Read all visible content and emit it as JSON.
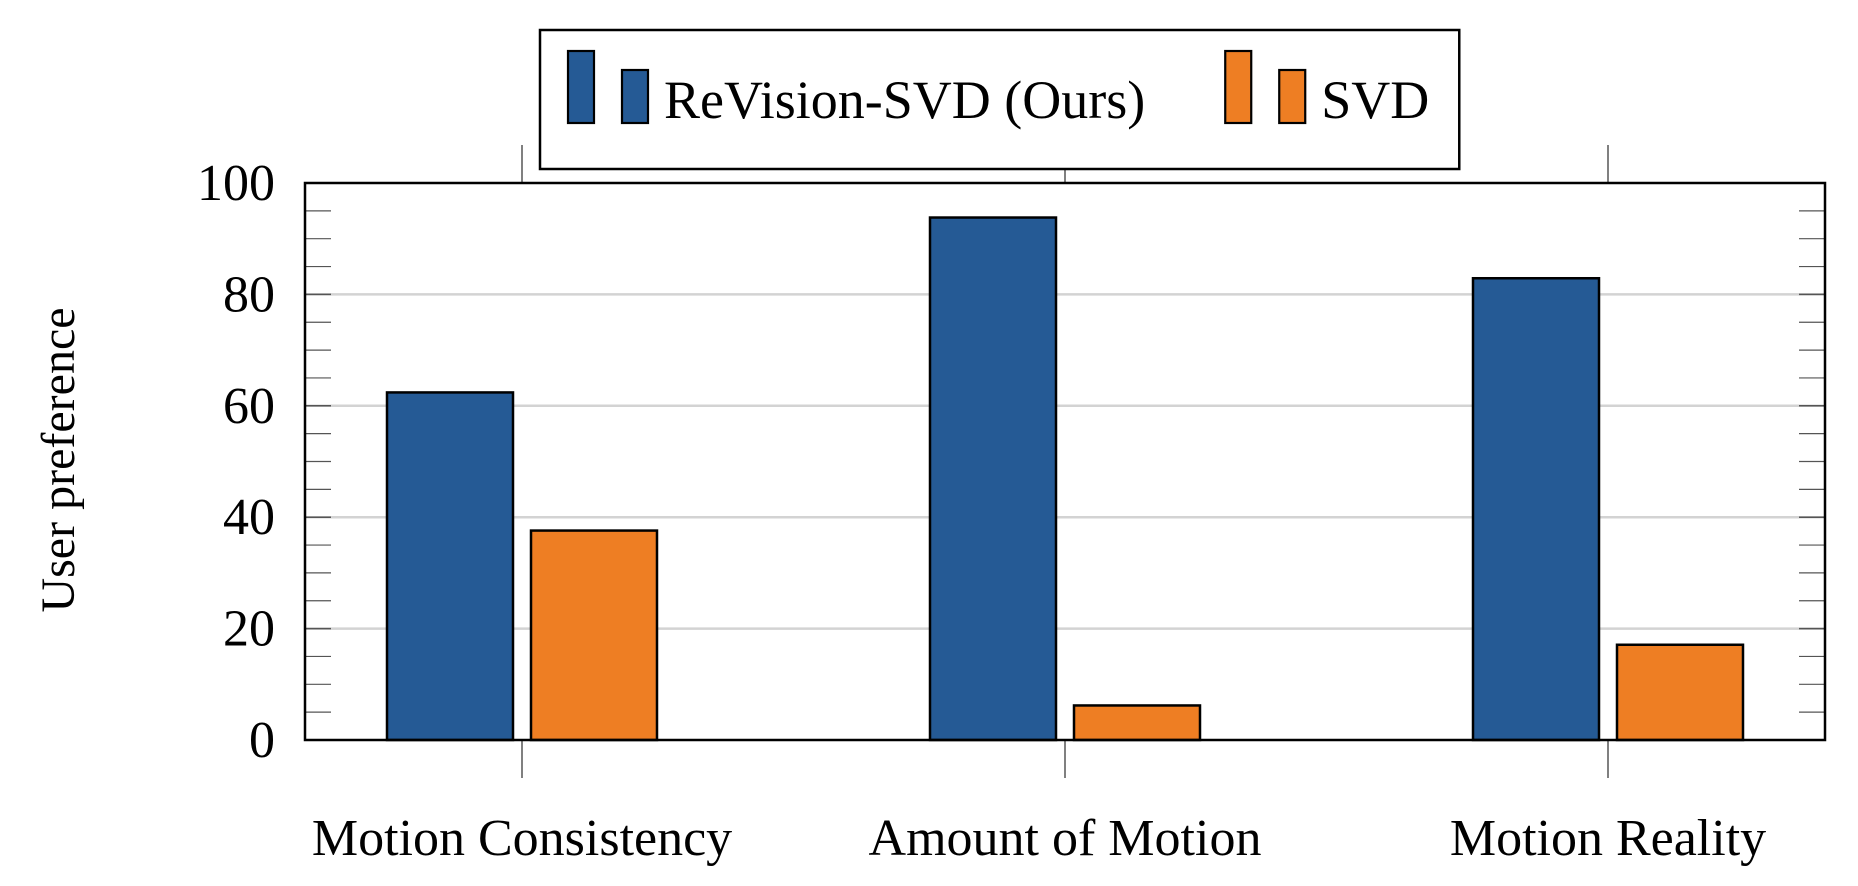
{
  "chart_data": {
    "type": "bar",
    "title": "",
    "xlabel": "",
    "ylabel": "User preference",
    "categories": [
      "Motion Consistency",
      "Amount of Motion",
      "Motion Reality"
    ],
    "series": [
      {
        "name": "ReVision-SVD (Ours)",
        "color": "#255A95",
        "values": [
          62.4,
          93.8,
          82.9
        ]
      },
      {
        "name": "SVD",
        "color": "#EE7E23",
        "values": [
          37.6,
          6.2,
          17.1
        ]
      }
    ],
    "ylim": [
      0,
      100
    ],
    "yticks": [
      0,
      20,
      40,
      60,
      80,
      100
    ],
    "yminor_step": 5,
    "grid": true,
    "legend_position": "top-center"
  }
}
